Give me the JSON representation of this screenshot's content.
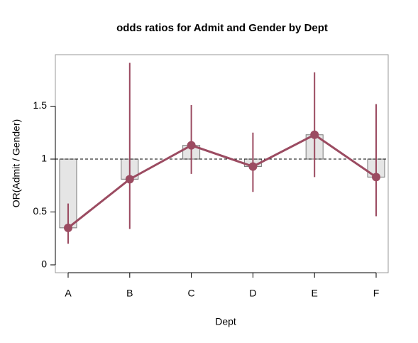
{
  "chart_data": {
    "type": "errorbar-line",
    "title": "odds ratios for Admit and Gender by Dept",
    "x_label": "Dept",
    "y_label": "OR(Admit / Gender)",
    "categories": [
      "A",
      "B",
      "C",
      "D",
      "E",
      "F"
    ],
    "series": [
      {
        "name": "OR",
        "color": "#9b4b61",
        "values": [
          0.35,
          0.81,
          1.13,
          0.93,
          1.23,
          0.83
        ],
        "lower": [
          0.2,
          0.34,
          0.86,
          0.69,
          0.83,
          0.46
        ],
        "upper": [
          0.58,
          1.91,
          1.51,
          1.25,
          1.82,
          1.52
        ]
      }
    ],
    "reference_line": 1,
    "bar_color": "#e5e5e5",
    "ylim": [
      -0.074,
      1.987
    ],
    "yticks": [
      0,
      0.5,
      1,
      1.5
    ]
  }
}
